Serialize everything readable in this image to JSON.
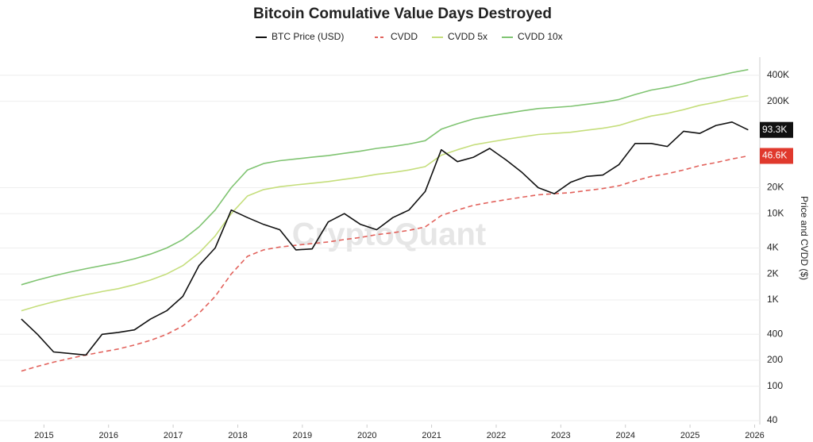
{
  "chart_data": {
    "type": "line",
    "title": "Bitcoin Comulative Value Days Destroyed",
    "y_label": "Price and CVDD ($)",
    "watermark": "CryptoQuant",
    "log_scale": true,
    "grid": true,
    "x": [
      2014.65,
      2014.9,
      2015.15,
      2015.4,
      2015.65,
      2015.9,
      2016.15,
      2016.4,
      2016.65,
      2016.9,
      2017.15,
      2017.4,
      2017.65,
      2017.9,
      2018.15,
      2018.4,
      2018.65,
      2018.9,
      2019.15,
      2019.4,
      2019.65,
      2019.9,
      2020.15,
      2020.4,
      2020.65,
      2020.9,
      2021.15,
      2021.4,
      2021.65,
      2021.9,
      2022.15,
      2022.4,
      2022.65,
      2022.9,
      2023.15,
      2023.4,
      2023.65,
      2023.9,
      2024.15,
      2024.4,
      2024.65,
      2024.9,
      2025.15,
      2025.4,
      2025.65,
      2025.9
    ],
    "xlim": [
      2014.32,
      2026.08
    ],
    "xticks": [
      2015,
      2016,
      2017,
      2018,
      2019,
      2020,
      2021,
      2022,
      2023,
      2024,
      2025,
      2026
    ],
    "ylim": [
      36,
      650000
    ],
    "yticks": [
      40,
      100,
      200,
      400,
      {
        "value": 1000,
        "label": "1K"
      },
      {
        "value": 2000,
        "label": "2K"
      },
      {
        "value": 4000,
        "label": "4K"
      },
      {
        "value": 10000,
        "label": "10K"
      },
      {
        "value": 20000,
        "label": "20K"
      },
      {
        "value": 200000,
        "label": "200K"
      },
      {
        "value": 400000,
        "label": "400K"
      }
    ],
    "series": [
      {
        "name": "BTC Price (USD)",
        "color": "#111111",
        "dash": false,
        "values": [
          600,
          400,
          250,
          240,
          230,
          400,
          420,
          450,
          600,
          750,
          1100,
          2500,
          4000,
          11000,
          9000,
          7500,
          6500,
          3800,
          3900,
          8000,
          10000,
          7500,
          6500,
          9000,
          11000,
          18000,
          55000,
          40000,
          45000,
          57000,
          42000,
          30000,
          20000,
          17000,
          23000,
          27000,
          28000,
          37000,
          65000,
          65000,
          60000,
          90000,
          85000,
          105000,
          115000,
          93300
        ]
      },
      {
        "name": "CVDD",
        "color": "#e2625c",
        "dash": true,
        "values": [
          150,
          170,
          190,
          210,
          230,
          250,
          270,
          300,
          340,
          400,
          500,
          700,
          1100,
          2000,
          3200,
          3800,
          4100,
          4300,
          4500,
          4700,
          5000,
          5300,
          5700,
          6000,
          6400,
          7000,
          9500,
          11000,
          12500,
          13500,
          14500,
          15500,
          16500,
          17000,
          17500,
          18500,
          19500,
          21000,
          24000,
          27000,
          29000,
          32000,
          36000,
          39000,
          43000,
          46600
        ]
      },
      {
        "name": "CVDD 5x",
        "color": "#c5de7c",
        "dash": false,
        "values": [
          750,
          850,
          950,
          1050,
          1150,
          1250,
          1350,
          1500,
          1700,
          2000,
          2500,
          3500,
          5500,
          10000,
          16000,
          19000,
          20500,
          21500,
          22500,
          23500,
          25000,
          26500,
          28500,
          30000,
          32000,
          35000,
          47500,
          55000,
          62500,
          67500,
          72500,
          77500,
          82500,
          85000,
          87500,
          92500,
          97500,
          105000,
          120000,
          135000,
          145000,
          160000,
          180000,
          195000,
          215000,
          233000
        ]
      },
      {
        "name": "CVDD 10x",
        "color": "#80c472",
        "dash": false,
        "values": [
          1500,
          1700,
          1900,
          2100,
          2300,
          2500,
          2700,
          3000,
          3400,
          4000,
          5000,
          7000,
          11000,
          20000,
          32000,
          38000,
          41000,
          43000,
          45000,
          47000,
          50000,
          53000,
          57000,
          60000,
          64000,
          70000,
          95000,
          110000,
          125000,
          135000,
          145000,
          155000,
          165000,
          170000,
          175000,
          185000,
          195000,
          210000,
          240000,
          270000,
          290000,
          320000,
          360000,
          390000,
          430000,
          466000
        ]
      }
    ],
    "end_labels": [
      {
        "value": 93300,
        "label": "93.3K",
        "color": "#111111"
      },
      {
        "value": 46600,
        "label": "46.6K",
        "color": "#e0392d"
      }
    ]
  }
}
